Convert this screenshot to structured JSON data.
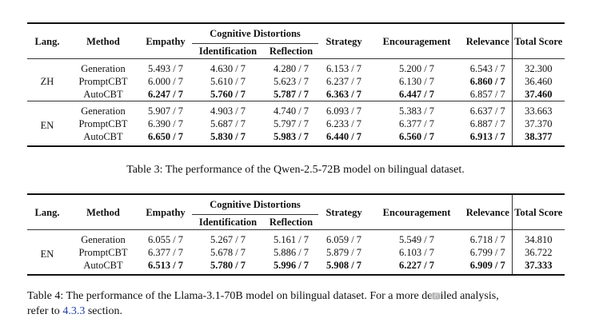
{
  "table3": {
    "headers": {
      "lang": "Lang.",
      "method": "Method",
      "empathy": "Empathy",
      "cognitive": "Cognitive Distortions",
      "identification": "Identification",
      "reflection": "Reflection",
      "strategy": "Strategy",
      "encouragement": "Encouragement",
      "relevance": "Relevance",
      "total": "Total Score"
    },
    "groups": [
      {
        "lang": "ZH",
        "rows": [
          {
            "method": "Generation",
            "empathy": "5.493 / 7",
            "identification": "4.630 / 7",
            "reflection": "4.280 / 7",
            "strategy": "6.153 / 7",
            "encouragement": "5.200 / 7",
            "relevance": "6.543 / 7",
            "total": "32.300"
          },
          {
            "method": "PromptCBT",
            "empathy": "6.000 / 7",
            "identification": "5.610 / 7",
            "reflection": "5.623 / 7",
            "strategy": "6.237 / 7",
            "encouragement": "6.130 / 7",
            "relevance": "6.860 / 7",
            "total": "36.460"
          },
          {
            "method": "AutoCBT",
            "empathy": "6.247 / 7",
            "identification": "5.760 / 7",
            "reflection": "5.787 / 7",
            "strategy": "6.363 / 7",
            "encouragement": "6.447 / 7",
            "relevance": "6.857 / 7",
            "total": "37.460"
          }
        ]
      },
      {
        "lang": "EN",
        "rows": [
          {
            "method": "Generation",
            "empathy": "5.907 / 7",
            "identification": "4.903 / 7",
            "reflection": "4.740 / 7",
            "strategy": "6.093 / 7",
            "encouragement": "5.383 / 7",
            "relevance": "6.637 / 7",
            "total": "33.663"
          },
          {
            "method": "PromptCBT",
            "empathy": "6.390 / 7",
            "identification": "5.687 / 7",
            "reflection": "5.797 / 7",
            "strategy": "6.233 / 7",
            "encouragement": "6.377 / 7",
            "relevance": "6.887 / 7",
            "total": "37.370"
          },
          {
            "method": "AutoCBT",
            "empathy": "6.650 / 7",
            "identification": "5.830 / 7",
            "reflection": "5.983 / 7",
            "strategy": "6.440 / 7",
            "encouragement": "6.560 / 7",
            "relevance": "6.913 / 7",
            "total": "38.377"
          }
        ]
      }
    ],
    "caption": "Table 3: The performance of the Qwen-2.5-72B model on bilingual dataset."
  },
  "table4": {
    "groups": [
      {
        "lang": "EN",
        "rows": [
          {
            "method": "Generation",
            "empathy": "6.055 / 7",
            "identification": "5.267 / 7",
            "reflection": "5.161 / 7",
            "strategy": "6.059 / 7",
            "encouragement": "5.549 / 7",
            "relevance": "6.718 / 7",
            "total": "34.810"
          },
          {
            "method": "PromptCBT",
            "empathy": "6.377 / 7",
            "identification": "5.678 / 7",
            "reflection": "5.886 / 7",
            "strategy": "5.879 / 7",
            "encouragement": "6.103 / 7",
            "relevance": "6.799 / 7",
            "total": "36.722"
          },
          {
            "method": "AutoCBT",
            "empathy": "6.513 / 7",
            "identification": "5.780 / 7",
            "reflection": "5.996 / 7",
            "strategy": "5.908 / 7",
            "encouragement": "6.227 / 7",
            "relevance": "6.909 / 7",
            "total": "37.333"
          }
        ]
      }
    ],
    "caption_line1": "Table 4: The performance of the Llama-3.1-70B model on bilingual dataset. For a more detailed analysis,",
    "caption_prefix": "refer to ",
    "caption_link": "4.3.3",
    "caption_suffix": " section."
  }
}
